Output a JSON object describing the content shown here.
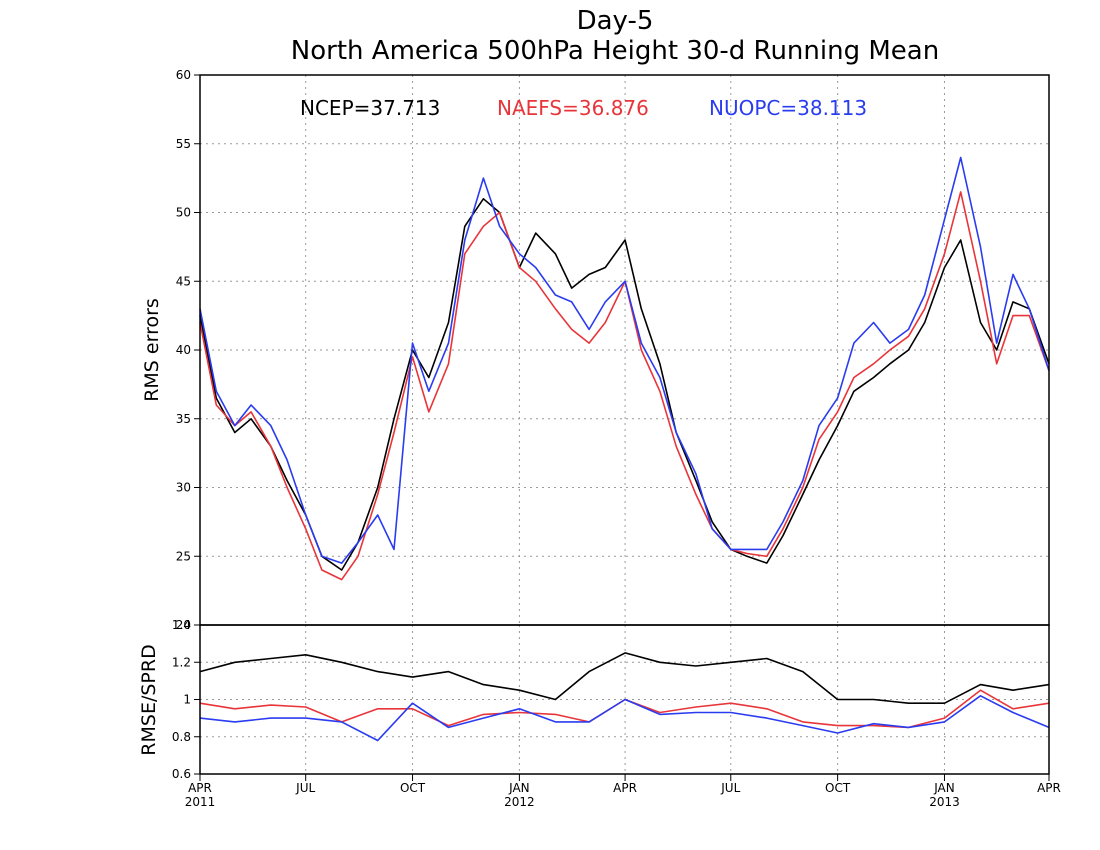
{
  "chart_data": [
    {
      "type": "line",
      "title": "Day-5",
      "subtitle": "North America 500hPa Height 30-d Running Mean",
      "ylabel": "RMS errors",
      "ylim": [
        20,
        60
      ],
      "yticks": [
        "20",
        "25",
        "30",
        "35",
        "40",
        "45",
        "50",
        "55",
        "60"
      ],
      "grid": true,
      "legend_position": "top",
      "x_range": [
        "2011-04-01",
        "2013-04-01"
      ],
      "x": [
        "2011-04-01",
        "2011-04-15",
        "2011-05-01",
        "2011-05-15",
        "2011-06-01",
        "2011-06-15",
        "2011-07-01",
        "2011-07-15",
        "2011-08-01",
        "2011-08-15",
        "2011-09-01",
        "2011-09-15",
        "2011-10-01",
        "2011-10-15",
        "2011-11-01",
        "2011-11-15",
        "2011-12-01",
        "2011-12-15",
        "2012-01-01",
        "2012-01-15",
        "2012-02-01",
        "2012-02-15",
        "2012-03-01",
        "2012-03-15",
        "2012-04-01",
        "2012-04-15",
        "2012-05-01",
        "2012-05-15",
        "2012-06-01",
        "2012-06-15",
        "2012-07-01",
        "2012-07-15",
        "2012-08-01",
        "2012-08-15",
        "2012-09-01",
        "2012-09-15",
        "2012-10-01",
        "2012-10-15",
        "2012-11-01",
        "2012-11-15",
        "2012-12-01",
        "2012-12-15",
        "2013-01-01",
        "2013-01-15",
        "2013-02-01",
        "2013-02-15",
        "2013-03-01",
        "2013-03-15",
        "2013-04-01"
      ],
      "series": [
        {
          "name": "NCEP",
          "stat_label": "NCEP=37.713",
          "color": "#000000",
          "values": [
            42.5,
            36.5,
            34.0,
            35.0,
            33.0,
            30.5,
            28.0,
            25.0,
            24.0,
            26.0,
            30.0,
            35.0,
            40.0,
            38.0,
            42.0,
            49.0,
            51.0,
            50.0,
            46.0,
            48.5,
            47.0,
            44.5,
            45.5,
            46.0,
            48.0,
            43.0,
            39.0,
            34.0,
            30.5,
            27.5,
            25.5,
            25.0,
            24.5,
            26.5,
            29.5,
            32.0,
            34.5,
            37.0,
            38.0,
            39.0,
            40.0,
            42.0,
            46.0,
            48.0,
            42.0,
            40.0,
            43.5,
            43.0,
            39.0
          ]
        },
        {
          "name": "NAEFS",
          "stat_label": "NAEFS=36.876",
          "color": "#e8353a",
          "values": [
            42.0,
            36.0,
            34.5,
            35.5,
            33.0,
            30.0,
            27.0,
            24.0,
            23.3,
            25.0,
            29.5,
            34.0,
            39.5,
            35.5,
            39.0,
            47.0,
            49.0,
            50.0,
            46.0,
            45.0,
            43.0,
            41.5,
            40.5,
            42.0,
            45.0,
            40.0,
            37.0,
            33.0,
            29.5,
            27.0,
            25.5,
            25.2,
            25.0,
            27.0,
            30.0,
            33.5,
            35.5,
            38.0,
            39.0,
            40.0,
            41.0,
            43.0,
            47.0,
            51.5,
            45.0,
            39.0,
            42.5,
            42.5,
            38.5
          ]
        },
        {
          "name": "NUOPC",
          "stat_label": "NUOPC=38.113",
          "color": "#2a3cf0",
          "values": [
            43.0,
            37.0,
            34.5,
            36.0,
            34.5,
            32.0,
            28.0,
            25.0,
            24.5,
            26.0,
            28.0,
            25.5,
            40.5,
            37.0,
            40.5,
            48.0,
            52.5,
            49.0,
            47.0,
            46.0,
            44.0,
            43.5,
            41.5,
            43.5,
            45.0,
            40.5,
            38.0,
            34.0,
            31.0,
            27.0,
            25.5,
            25.5,
            25.5,
            27.5,
            30.5,
            34.5,
            36.5,
            40.5,
            42.0,
            40.5,
            41.5,
            44.0,
            49.5,
            54.0,
            47.5,
            40.5,
            45.5,
            43.0,
            38.5
          ]
        }
      ]
    },
    {
      "type": "line",
      "ylabel": "RMSE/SPRD",
      "ylim": [
        0.6,
        1.4
      ],
      "yticks": [
        "0.6",
        "0.8",
        "1",
        "1.2",
        "1.4"
      ],
      "grid": true,
      "x_range": [
        "2011-04-01",
        "2013-04-01"
      ],
      "xtick_labels": [
        {
          "month": "APR",
          "year": "2011",
          "date": "2011-04-01"
        },
        {
          "month": "JUL",
          "year": "",
          "date": "2011-07-01"
        },
        {
          "month": "OCT",
          "year": "",
          "date": "2011-10-01"
        },
        {
          "month": "JAN",
          "year": "2012",
          "date": "2012-01-01"
        },
        {
          "month": "APR",
          "year": "",
          "date": "2012-04-01"
        },
        {
          "month": "JUL",
          "year": "",
          "date": "2012-07-01"
        },
        {
          "month": "OCT",
          "year": "",
          "date": "2012-10-01"
        },
        {
          "month": "JAN",
          "year": "2013",
          "date": "2013-01-01"
        },
        {
          "month": "APR",
          "year": "",
          "date": "2013-04-01"
        }
      ],
      "x": [
        "2011-04-01",
        "2011-05-01",
        "2011-06-01",
        "2011-07-01",
        "2011-08-01",
        "2011-09-01",
        "2011-10-01",
        "2011-11-01",
        "2011-12-01",
        "2012-01-01",
        "2012-02-01",
        "2012-03-01",
        "2012-04-01",
        "2012-05-01",
        "2012-06-01",
        "2012-07-01",
        "2012-08-01",
        "2012-09-01",
        "2012-10-01",
        "2012-11-01",
        "2012-12-01",
        "2013-01-01",
        "2013-02-01",
        "2013-03-01",
        "2013-04-01"
      ],
      "series": [
        {
          "name": "NCEP",
          "color": "#000000",
          "values": [
            1.15,
            1.2,
            1.22,
            1.24,
            1.2,
            1.15,
            1.12,
            1.15,
            1.08,
            1.05,
            1.0,
            1.15,
            1.25,
            1.2,
            1.18,
            1.2,
            1.22,
            1.15,
            1.0,
            1.0,
            0.98,
            0.98,
            1.08,
            1.05,
            1.08
          ]
        },
        {
          "name": "NAEFS",
          "color": "#e8353a",
          "values": [
            0.98,
            0.95,
            0.97,
            0.96,
            0.88,
            0.95,
            0.95,
            0.86,
            0.92,
            0.93,
            0.92,
            0.88,
            1.0,
            0.93,
            0.96,
            0.98,
            0.95,
            0.88,
            0.86,
            0.86,
            0.85,
            0.9,
            1.05,
            0.95,
            0.98
          ]
        },
        {
          "name": "NUOPC",
          "color": "#2a3cf0",
          "values": [
            0.9,
            0.88,
            0.9,
            0.9,
            0.88,
            0.78,
            0.98,
            0.85,
            0.9,
            0.95,
            0.88,
            0.88,
            1.0,
            0.92,
            0.93,
            0.93,
            0.9,
            0.86,
            0.82,
            0.87,
            0.85,
            0.88,
            1.02,
            0.93,
            0.85
          ]
        }
      ]
    }
  ]
}
